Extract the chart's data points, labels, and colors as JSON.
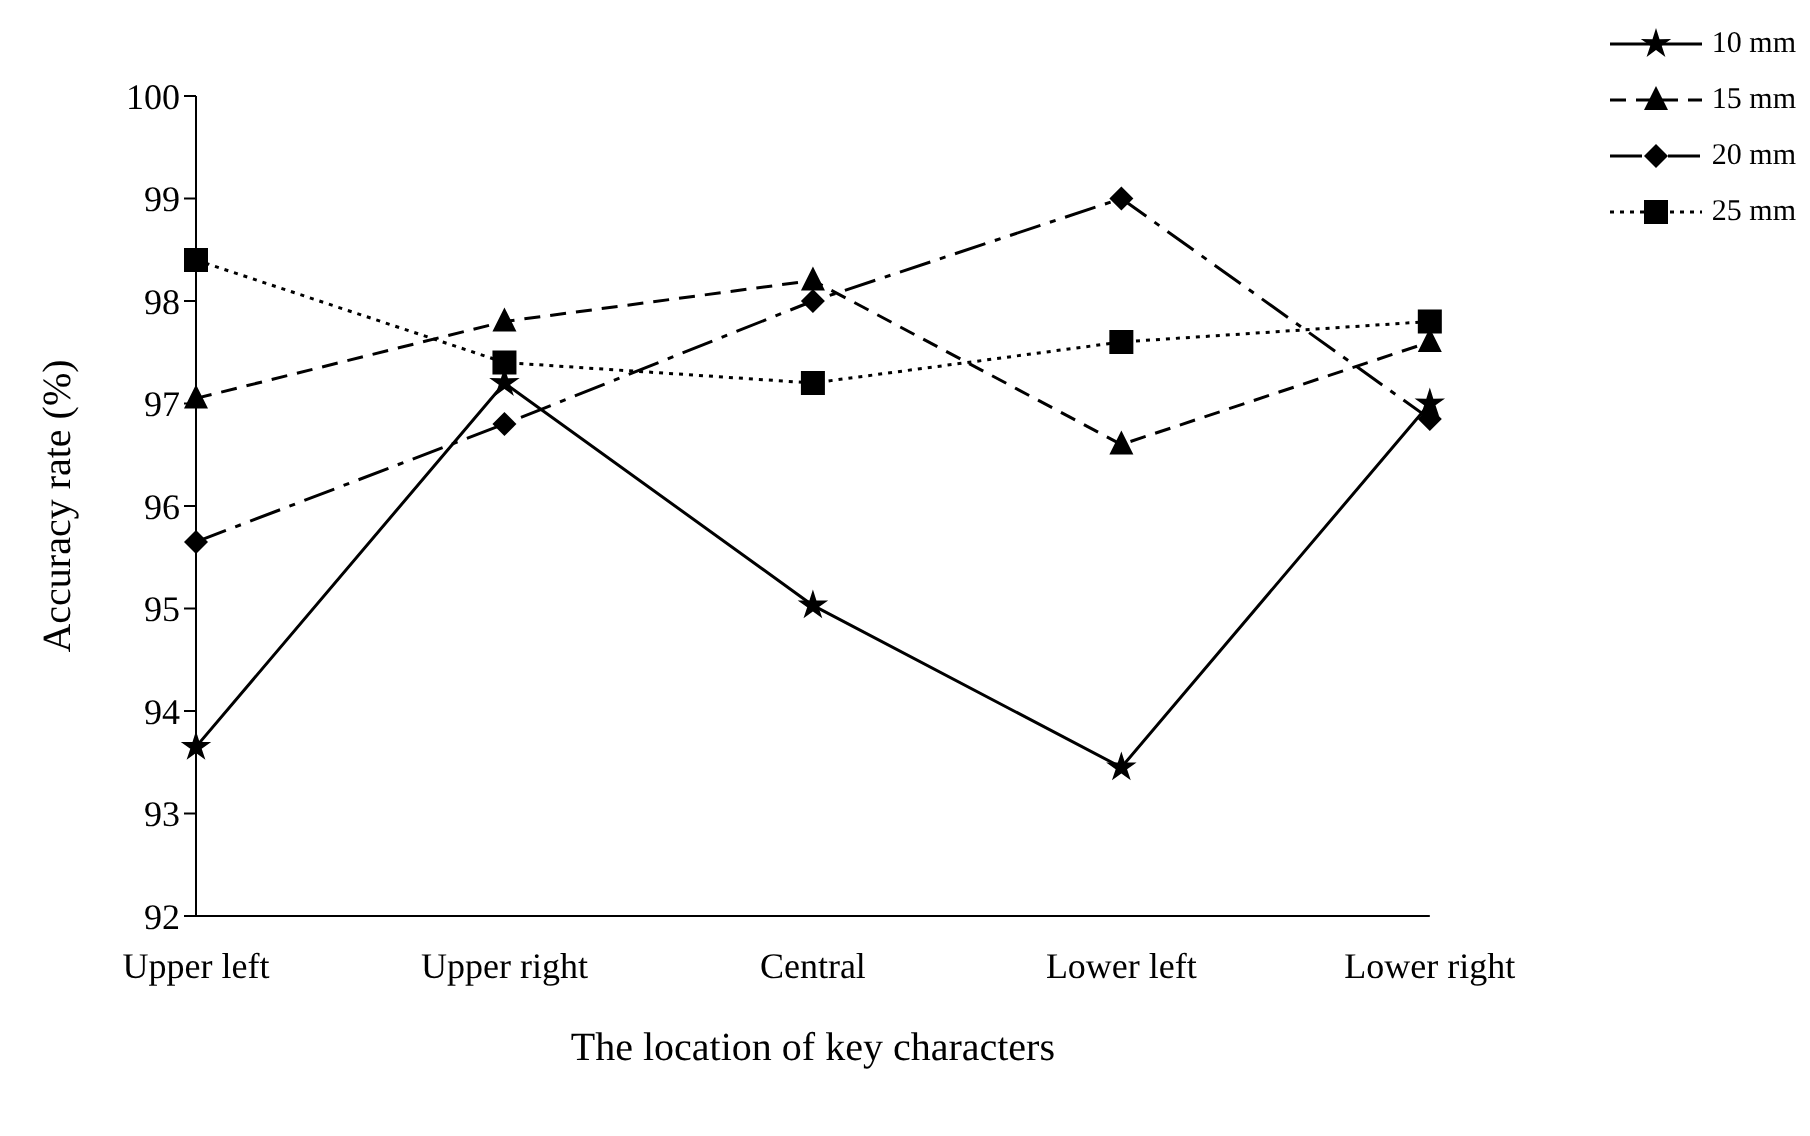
{
  "chart_data": {
    "type": "line",
    "xlabel": "The location of key characters",
    "ylabel": "Accuracy rate (%)",
    "categories": [
      "Upper left",
      "Upper right",
      "Central",
      "Lower left",
      "Lower right"
    ],
    "series": [
      {
        "name": "10 mm",
        "color": "#000000",
        "marker": "star",
        "line_style": "solid",
        "values": [
          93.65,
          97.2,
          95.03,
          93.45,
          97.0
        ]
      },
      {
        "name": "15 mm",
        "color": "#000000",
        "marker": "triangle",
        "line_style": "dashed",
        "values": [
          97.05,
          97.8,
          98.2,
          96.6,
          97.6
        ]
      },
      {
        "name": "20 mm",
        "color": "#000000",
        "marker": "diamond",
        "line_style": "dashdot",
        "values": [
          95.65,
          96.8,
          98.0,
          99.0,
          96.85
        ]
      },
      {
        "name": "25 mm",
        "color": "#000000",
        "marker": "square",
        "line_style": "dotted",
        "values": [
          98.4,
          97.4,
          97.2,
          97.6,
          97.8
        ]
      }
    ],
    "ylim": [
      92,
      100
    ],
    "yticks": [
      92,
      93,
      94,
      95,
      96,
      97,
      98,
      99,
      100
    ],
    "grid": false,
    "legend": "top right"
  }
}
